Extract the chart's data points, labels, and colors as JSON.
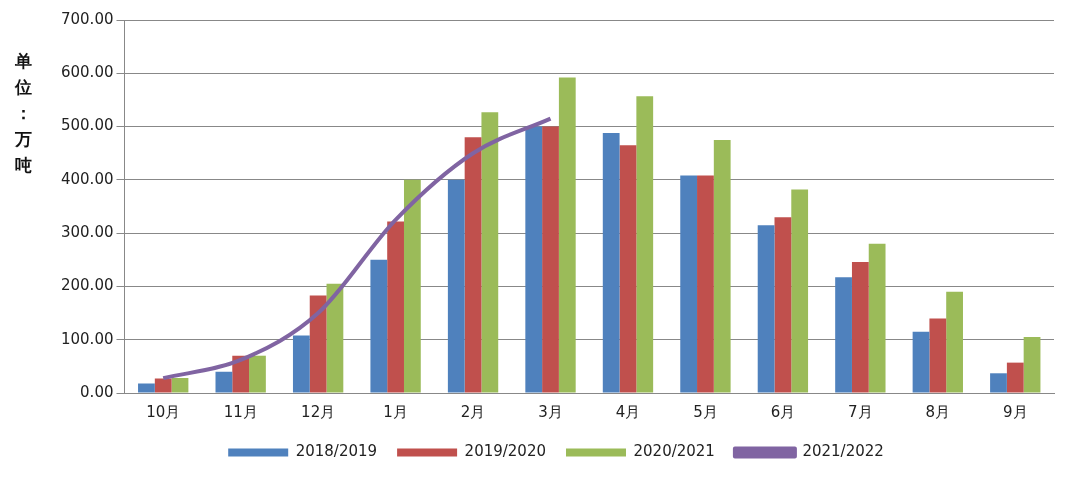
{
  "chart_data": {
    "type": "bar",
    "ylabel": "单位：万吨",
    "categories": [
      "10月",
      "11月",
      "12月",
      "1月",
      "2月",
      "3月",
      "4月",
      "5月",
      "6月",
      "7月",
      "8月",
      "9月"
    ],
    "series": [
      {
        "name": "2018/2019",
        "color": "#4f81bd",
        "values": [
          18,
          40,
          108,
          250,
          400,
          500,
          488,
          408,
          315,
          217,
          115,
          37
        ]
      },
      {
        "name": "2019/2020",
        "color": "#c0504d",
        "values": [
          27,
          70,
          183,
          322,
          480,
          500,
          465,
          408,
          330,
          246,
          140,
          57
        ]
      },
      {
        "name": "2020/2021",
        "color": "#9bbb59",
        "values": [
          28,
          70,
          205,
          400,
          527,
          592,
          557,
          475,
          382,
          280,
          190,
          105
        ]
      },
      {
        "name": "2021/2022",
        "color": "#8064a2",
        "type": "line",
        "values": [
          28,
          62,
          150,
          325,
          450,
          515,
          null,
          null,
          null,
          null,
          null,
          null
        ]
      }
    ],
    "ylim": [
      0,
      700
    ],
    "yticks": [
      {
        "value": 0,
        "label": "0.00"
      },
      {
        "value": 100,
        "label": "100.00"
      },
      {
        "value": 200,
        "label": "200.00"
      },
      {
        "value": 300,
        "label": "300.00"
      },
      {
        "value": 400,
        "label": "400.00"
      },
      {
        "value": 500,
        "label": "500.00"
      },
      {
        "value": 600,
        "label": "600.00"
      },
      {
        "value": 700,
        "label": "700.00"
      }
    ],
    "grid": "y",
    "legend": "bottom"
  }
}
